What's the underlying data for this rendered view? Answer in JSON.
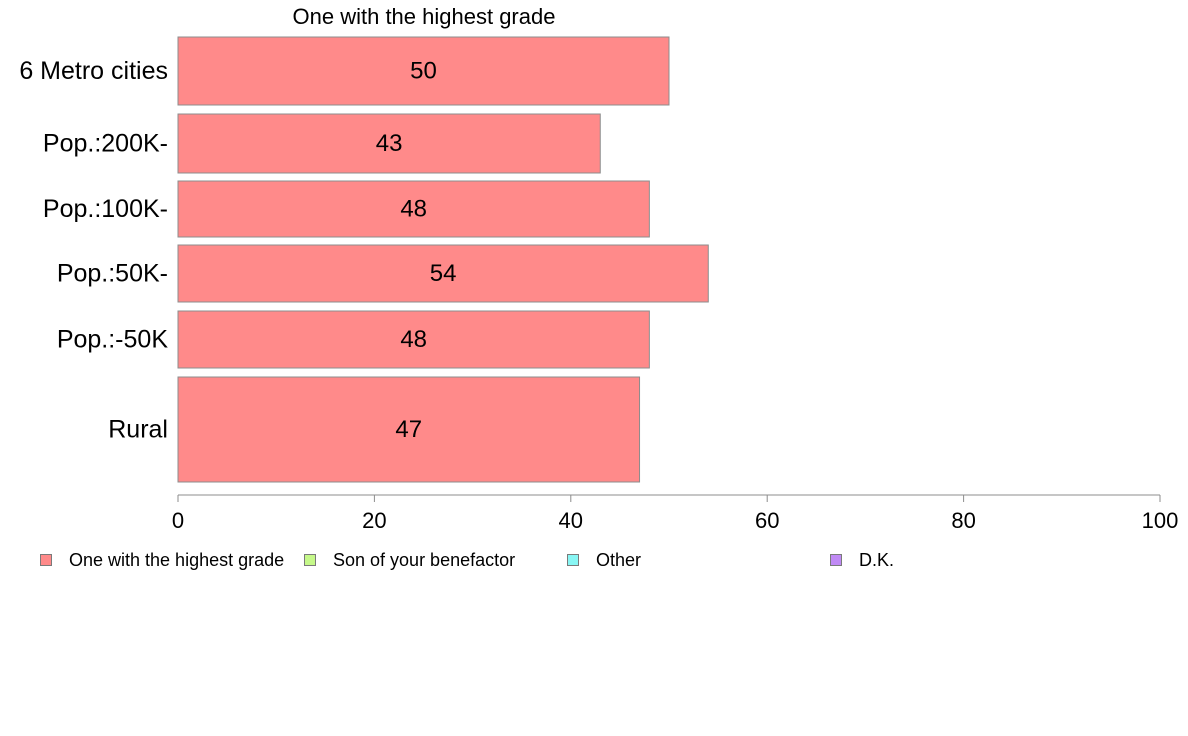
{
  "chart_data": {
    "type": "bar",
    "orientation": "horizontal",
    "title": "One with the highest grade",
    "categories": [
      "6 Metro cities",
      "Pop.:200K-",
      "Pop.:100K-",
      "Pop.:50K-",
      "Pop.:-50K",
      "Rural"
    ],
    "series": [
      {
        "name": "One with the highest grade",
        "color": "#ff8a8a",
        "values": [
          50,
          43,
          48,
          54,
          48,
          47
        ],
        "labels": [
          "50",
          "43",
          "48",
          "54",
          "48",
          "47"
        ]
      }
    ],
    "xlim": [
      0,
      100
    ],
    "xticks": [
      0,
      20,
      40,
      60,
      80,
      100
    ],
    "xtick_labels": [
      "0",
      "20",
      "40",
      "60",
      "80",
      "100"
    ],
    "grid": false,
    "legend_position": "bottom",
    "legend": [
      {
        "label": "One with the highest grade",
        "color": "#ff8a8a"
      },
      {
        "label": "Son of your benefactor",
        "color": "#c6f98a"
      },
      {
        "label": "Other",
        "color": "#88f6f4"
      },
      {
        "label": "D.K.",
        "color": "#c08af5"
      }
    ]
  }
}
